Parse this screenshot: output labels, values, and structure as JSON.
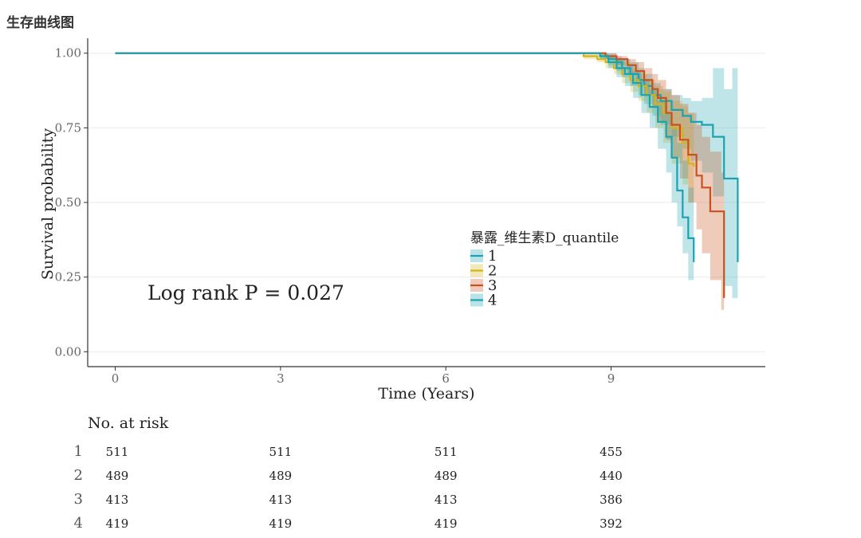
{
  "page": {
    "title": "生存曲线图"
  },
  "chart_data": {
    "type": "line",
    "subtype": "kaplan-meier survival",
    "title": "",
    "xlabel": "Time (Years)",
    "ylabel": "Survival probability",
    "xlim": [
      -0.5,
      11.8
    ],
    "ylim": [
      -0.05,
      1.05
    ],
    "x_ticks": [
      0,
      3,
      6,
      9
    ],
    "y_ticks": [
      0.0,
      0.25,
      0.5,
      0.75,
      1.0
    ],
    "y_tick_labels": [
      "0.00",
      "0.25",
      "0.50",
      "0.75",
      "1.00"
    ],
    "grid": true,
    "annotation": "Log rank P = 0.027",
    "legend": {
      "title": "暴露_维生素D_quantile",
      "position": "center-right"
    },
    "series": [
      {
        "name": "1",
        "color": "#1aa3b0",
        "x": [
          0,
          8.6,
          8.8,
          8.95,
          9.1,
          9.2,
          9.35,
          9.5,
          9.6,
          9.75,
          9.9,
          10.1,
          10.3,
          10.45,
          10.65,
          10.85,
          11.05,
          11.2,
          11.3
        ],
        "y": [
          1.0,
          1.0,
          0.99,
          0.98,
          0.97,
          0.95,
          0.93,
          0.91,
          0.89,
          0.86,
          0.84,
          0.81,
          0.79,
          0.77,
          0.76,
          0.72,
          0.58,
          0.58,
          0.3
        ],
        "lower": [
          1.0,
          1.0,
          0.98,
          0.96,
          0.94,
          0.92,
          0.89,
          0.86,
          0.83,
          0.79,
          0.76,
          0.72,
          0.68,
          0.64,
          0.6,
          0.52,
          0.22,
          0.18,
          0.16
        ],
        "upper": [
          1.0,
          1.0,
          1.0,
          1.0,
          0.99,
          0.98,
          0.97,
          0.95,
          0.93,
          0.9,
          0.88,
          0.86,
          0.85,
          0.84,
          0.85,
          0.95,
          0.88,
          0.95,
          0.72
        ]
      },
      {
        "name": "2",
        "color": "#d4b21c",
        "x": [
          0,
          8.5,
          8.75,
          8.9,
          9.05,
          9.2,
          9.35,
          9.5,
          9.65,
          9.8,
          9.95,
          10.1,
          10.3,
          10.4,
          10.5
        ],
        "y": [
          1.0,
          0.99,
          0.98,
          0.97,
          0.95,
          0.93,
          0.91,
          0.89,
          0.86,
          0.83,
          0.8,
          0.75,
          0.7,
          0.63,
          0.62
        ],
        "lower": [
          1.0,
          0.98,
          0.97,
          0.95,
          0.93,
          0.9,
          0.87,
          0.84,
          0.8,
          0.75,
          0.7,
          0.63,
          0.56,
          0.5,
          0.48
        ],
        "upper": [
          1.0,
          1.0,
          1.0,
          0.99,
          0.98,
          0.97,
          0.95,
          0.93,
          0.91,
          0.89,
          0.87,
          0.84,
          0.82,
          0.8,
          0.79
        ]
      },
      {
        "name": "3",
        "color": "#c8521f",
        "x": [
          0,
          8.7,
          8.9,
          9.1,
          9.3,
          9.45,
          9.6,
          9.75,
          9.85,
          10.0,
          10.1,
          10.25,
          10.4,
          10.55,
          10.65,
          10.8,
          11.0,
          11.05
        ],
        "y": [
          1.0,
          1.0,
          0.99,
          0.98,
          0.96,
          0.94,
          0.91,
          0.88,
          0.85,
          0.8,
          0.76,
          0.71,
          0.66,
          0.59,
          0.55,
          0.47,
          0.47,
          0.18
        ],
        "lower": [
          1.0,
          1.0,
          0.98,
          0.96,
          0.93,
          0.9,
          0.86,
          0.82,
          0.77,
          0.71,
          0.65,
          0.58,
          0.5,
          0.41,
          0.33,
          0.24,
          0.14,
          0.11
        ],
        "upper": [
          1.0,
          1.0,
          1.0,
          0.99,
          0.98,
          0.97,
          0.95,
          0.93,
          0.91,
          0.88,
          0.86,
          0.83,
          0.8,
          0.76,
          0.72,
          0.67,
          0.6,
          0.55
        ]
      },
      {
        "name": "4",
        "color": "#1aa3b0",
        "x": [
          0,
          8.6,
          8.8,
          8.95,
          9.1,
          9.25,
          9.4,
          9.55,
          9.7,
          9.85,
          10.0,
          10.1,
          10.2,
          10.3,
          10.4,
          10.5
        ],
        "y": [
          1.0,
          1.0,
          0.99,
          0.97,
          0.95,
          0.93,
          0.9,
          0.86,
          0.82,
          0.77,
          0.72,
          0.65,
          0.54,
          0.45,
          0.38,
          0.3
        ],
        "lower": [
          1.0,
          1.0,
          0.98,
          0.95,
          0.92,
          0.89,
          0.85,
          0.8,
          0.75,
          0.68,
          0.6,
          0.5,
          0.42,
          0.33,
          0.24,
          0.21
        ],
        "upper": [
          1.0,
          1.0,
          1.0,
          0.99,
          0.98,
          0.96,
          0.94,
          0.91,
          0.88,
          0.84,
          0.8,
          0.75,
          0.7,
          0.64,
          0.55,
          0.46
        ]
      }
    ],
    "risk_table": {
      "title": "No. at risk",
      "times": [
        0,
        3,
        6,
        9
      ],
      "rows": [
        {
          "stratum": "1",
          "values": [
            "511",
            "511",
            "511",
            "455"
          ]
        },
        {
          "stratum": "2",
          "values": [
            "489",
            "489",
            "489",
            "440"
          ]
        },
        {
          "stratum": "3",
          "values": [
            "413",
            "413",
            "413",
            "386"
          ]
        },
        {
          "stratum": "4",
          "values": [
            "419",
            "419",
            "419",
            "392"
          ]
        }
      ]
    }
  }
}
